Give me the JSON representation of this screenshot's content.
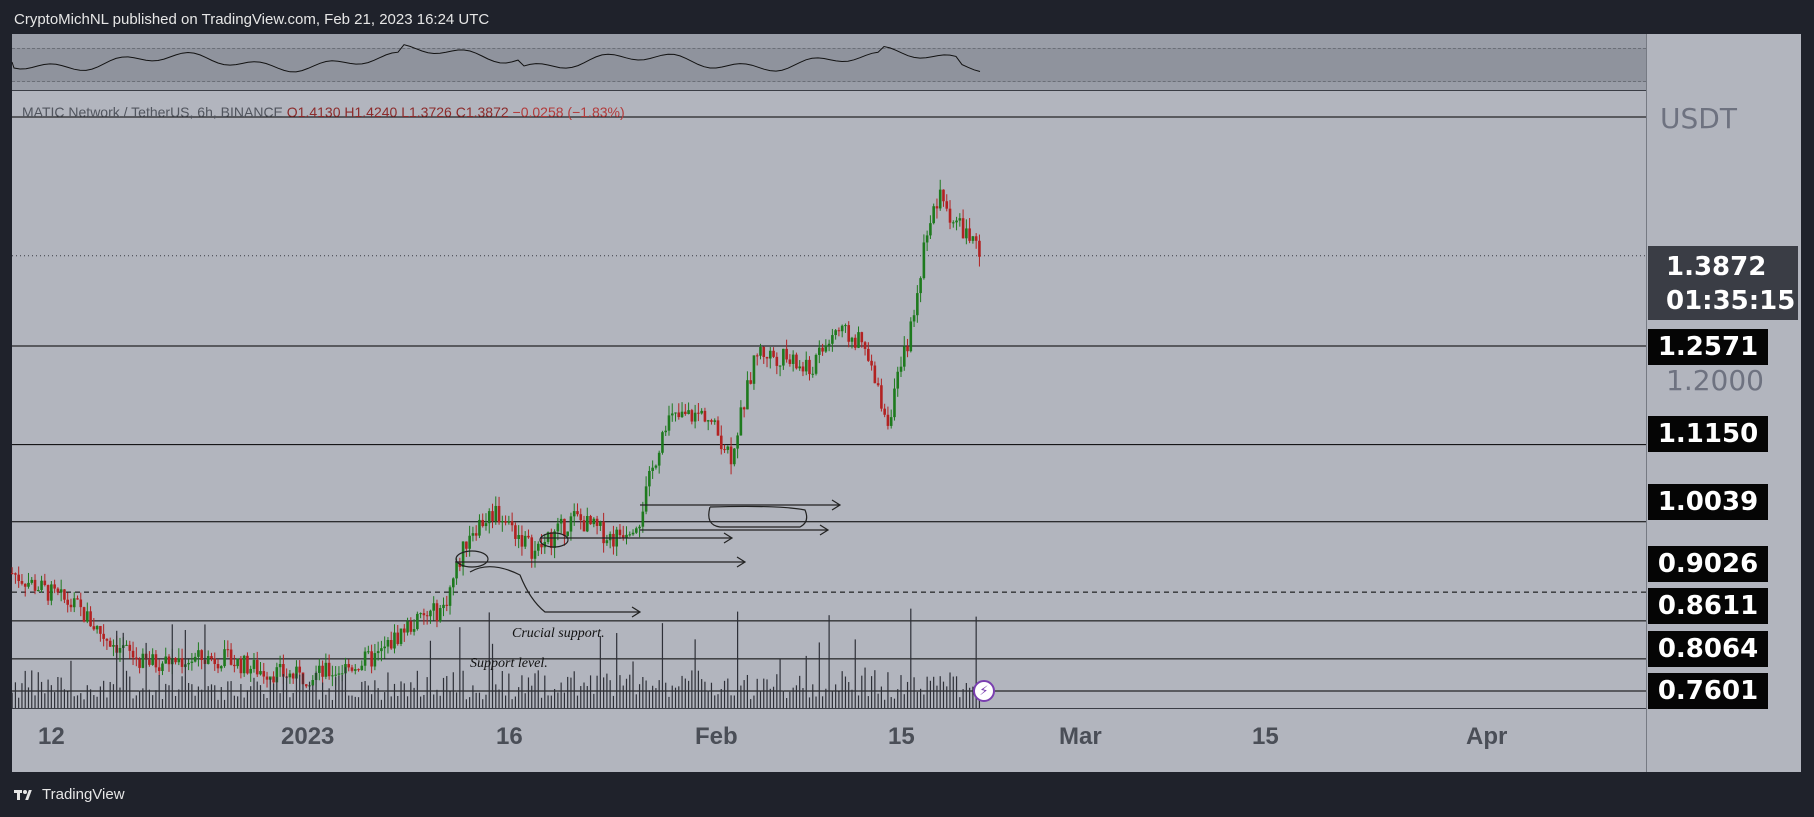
{
  "header": {
    "published": "CryptoMichNL published on TradingView.com, Feb 21, 2023 16:24 UTC"
  },
  "footer": {
    "brand": "TradingView"
  },
  "legend": {
    "symbol": "MATIC Network / TetherUS, 6h, BINANCE",
    "open": "O1.4130",
    "high": "H1.4240",
    "low": "L1.3726",
    "close": "C1.3872",
    "change": "−0.0258 (−1.83%)"
  },
  "price_scale": {
    "currency": "USDT",
    "current_price": "1.3872",
    "countdown": "01:35:15",
    "plain_ticks": [
      "1.2000"
    ],
    "levels": [
      "1.2571",
      "1.1150",
      "1.0039",
      "0.9026",
      "0.8611",
      "0.8064",
      "0.7601"
    ]
  },
  "time_axis": [
    "12",
    "2023",
    "16",
    "Feb",
    "15",
    "Mar",
    "15",
    "Apr"
  ],
  "annotations": {
    "crucial": "Crucial support.",
    "support": "Support level."
  },
  "colors": {
    "up": "#1e7a1e",
    "down": "#b22222",
    "background": "#b2b5be",
    "level_line": "#000000"
  },
  "chart_data": {
    "type": "candlestick",
    "title": "MATIC Network / TetherUS, 6h, BINANCE",
    "ylabel": "USDT",
    "ylim": [
      0.76,
      1.5
    ],
    "x_ticks": [
      "12",
      "2023",
      "16",
      "Feb",
      "15",
      "Mar",
      "15",
      "Apr"
    ],
    "horizontal_levels": [
      1.2571,
      1.115,
      1.0039,
      0.9026,
      0.8611,
      0.8064,
      0.7601
    ],
    "close_path": [
      {
        "date": "2022-12-09",
        "close": 0.93
      },
      {
        "date": "2022-12-12",
        "close": 0.9
      },
      {
        "date": "2022-12-14",
        "close": 0.88
      },
      {
        "date": "2022-12-16",
        "close": 0.84
      },
      {
        "date": "2022-12-19",
        "close": 0.8
      },
      {
        "date": "2022-12-22",
        "close": 0.805
      },
      {
        "date": "2022-12-25",
        "close": 0.808
      },
      {
        "date": "2022-12-28",
        "close": 0.79
      },
      {
        "date": "2022-12-31",
        "close": 0.78
      },
      {
        "date": "2023-01-03",
        "close": 0.79
      },
      {
        "date": "2023-01-06",
        "close": 0.81
      },
      {
        "date": "2023-01-08",
        "close": 0.85
      },
      {
        "date": "2023-01-11",
        "close": 0.88
      },
      {
        "date": "2023-01-13",
        "close": 0.99
      },
      {
        "date": "2023-01-15",
        "close": 1.02
      },
      {
        "date": "2023-01-18",
        "close": 0.96
      },
      {
        "date": "2023-01-21",
        "close": 1.01
      },
      {
        "date": "2023-01-24",
        "close": 0.98
      },
      {
        "date": "2023-01-26",
        "close": 1.01
      },
      {
        "date": "2023-01-28",
        "close": 1.15
      },
      {
        "date": "2023-01-31",
        "close": 1.16
      },
      {
        "date": "2023-02-02",
        "close": 1.1
      },
      {
        "date": "2023-02-04",
        "close": 1.25
      },
      {
        "date": "2023-02-06",
        "close": 1.24
      },
      {
        "date": "2023-02-08",
        "close": 1.22
      },
      {
        "date": "2023-02-10",
        "close": 1.28
      },
      {
        "date": "2023-02-12",
        "close": 1.26
      },
      {
        "date": "2023-02-14",
        "close": 1.15
      },
      {
        "date": "2023-02-16",
        "close": 1.3
      },
      {
        "date": "2023-02-17",
        "close": 1.43
      },
      {
        "date": "2023-02-18",
        "close": 1.47
      },
      {
        "date": "2023-02-19",
        "close": 1.44
      },
      {
        "date": "2023-02-20",
        "close": 1.42
      },
      {
        "date": "2023-02-21",
        "close": 1.387
      }
    ]
  }
}
